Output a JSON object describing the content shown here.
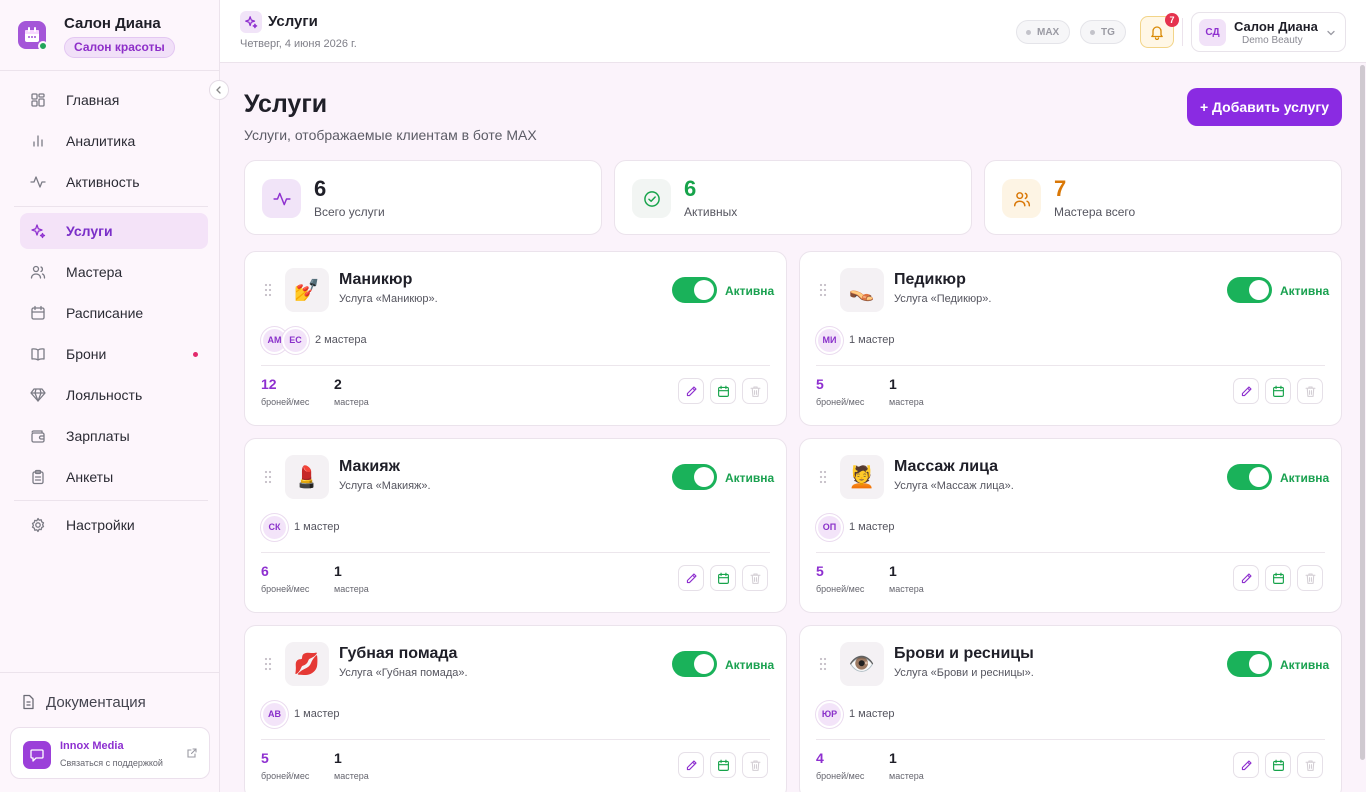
{
  "brand": {
    "name": "Салон Диана",
    "tag": "Салон красоты"
  },
  "nav": {
    "items": [
      {
        "label": "Главная",
        "icon": "dashboard-icon"
      },
      {
        "label": "Аналитика",
        "icon": "chart-icon"
      },
      {
        "label": "Активность",
        "icon": "activity-icon"
      },
      {
        "label": "Услуги",
        "icon": "sparkles-icon",
        "active": true
      },
      {
        "label": "Мастера",
        "icon": "users-icon"
      },
      {
        "label": "Расписание",
        "icon": "calendar-icon"
      },
      {
        "label": "Брони",
        "icon": "book-icon",
        "has_dot": true
      },
      {
        "label": "Лояльность",
        "icon": "gem-icon"
      },
      {
        "label": "Зарплаты",
        "icon": "wallet-icon"
      },
      {
        "label": "Анкеты",
        "icon": "clipboard-icon"
      },
      {
        "label": "Настройки",
        "icon": "gear-icon"
      }
    ],
    "docs": "Документация"
  },
  "support": {
    "name": "Innox Media",
    "subtitle": "Связаться с поддержкой"
  },
  "topbar": {
    "title": "Услуги",
    "date": "Четверг, 4 июня 2026 г.",
    "chips": [
      "MAX",
      "TG"
    ],
    "notifications": "7",
    "account": {
      "initials": "СД",
      "name": "Салон Диана",
      "subtitle": "Demo Beauty"
    }
  },
  "page": {
    "title": "Услуги",
    "subtitle": "Услуги, отображаемые клиентам в боте MAX",
    "add_button": "+ Добавить услугу"
  },
  "stats": [
    {
      "value": "6",
      "label": "Всего услуги",
      "color": "#1f1f28"
    },
    {
      "value": "6",
      "label": "Активных",
      "color": "#16a34a"
    },
    {
      "value": "7",
      "label": "Мастера всего",
      "color": "#d97706"
    }
  ],
  "services": [
    {
      "name": "Маникюр",
      "desc": "Услуга «Маникюр».",
      "emoji": "💅",
      "status": "Активна",
      "active": true,
      "masters": [
        "АМ",
        "ЕС"
      ],
      "masters_count": "2 мастера",
      "bookings": "12",
      "bookings_label": "броней/мес",
      "masters_num": "2",
      "masters_label": "мастера"
    },
    {
      "name": "Педикюр",
      "desc": "Услуга «Педикюр».",
      "emoji": "👡",
      "status": "Активна",
      "active": true,
      "masters": [
        "МИ"
      ],
      "masters_count": "1 мастер",
      "bookings": "5",
      "bookings_label": "броней/мес",
      "masters_num": "1",
      "masters_label": "мастера"
    },
    {
      "name": "Макияж",
      "desc": "Услуга «Макияж».",
      "emoji": "💄",
      "status": "Активна",
      "active": true,
      "masters": [
        "СК"
      ],
      "masters_count": "1 мастер",
      "bookings": "6",
      "bookings_label": "броней/мес",
      "masters_num": "1",
      "masters_label": "мастера"
    },
    {
      "name": "Массаж лица",
      "desc": "Услуга «Массаж лица».",
      "emoji": "💆",
      "status": "Активна",
      "active": true,
      "masters": [
        "ОП"
      ],
      "masters_count": "1 мастер",
      "bookings": "5",
      "bookings_label": "броней/мес",
      "masters_num": "1",
      "masters_label": "мастера"
    },
    {
      "name": "Губная помада",
      "desc": "Услуга «Губная помада».",
      "emoji": "💋",
      "status": "Активна",
      "active": true,
      "masters": [
        "АВ"
      ],
      "masters_count": "1 мастер",
      "bookings": "5",
      "bookings_label": "броней/мес",
      "masters_num": "1",
      "masters_label": "мастера"
    },
    {
      "name": "Брови и ресницы",
      "desc": "Услуга «Брови и ресницы».",
      "emoji": "👁️",
      "status": "Активна",
      "active": true,
      "masters": [
        "ЮР"
      ],
      "masters_count": "1 мастер",
      "bookings": "4",
      "bookings_label": "броней/мес",
      "masters_num": "1",
      "masters_label": "мастера"
    }
  ],
  "colors": {
    "accent": "#8a2be2",
    "active_green": "#1ab25a",
    "notification_red": "#e5334e"
  }
}
